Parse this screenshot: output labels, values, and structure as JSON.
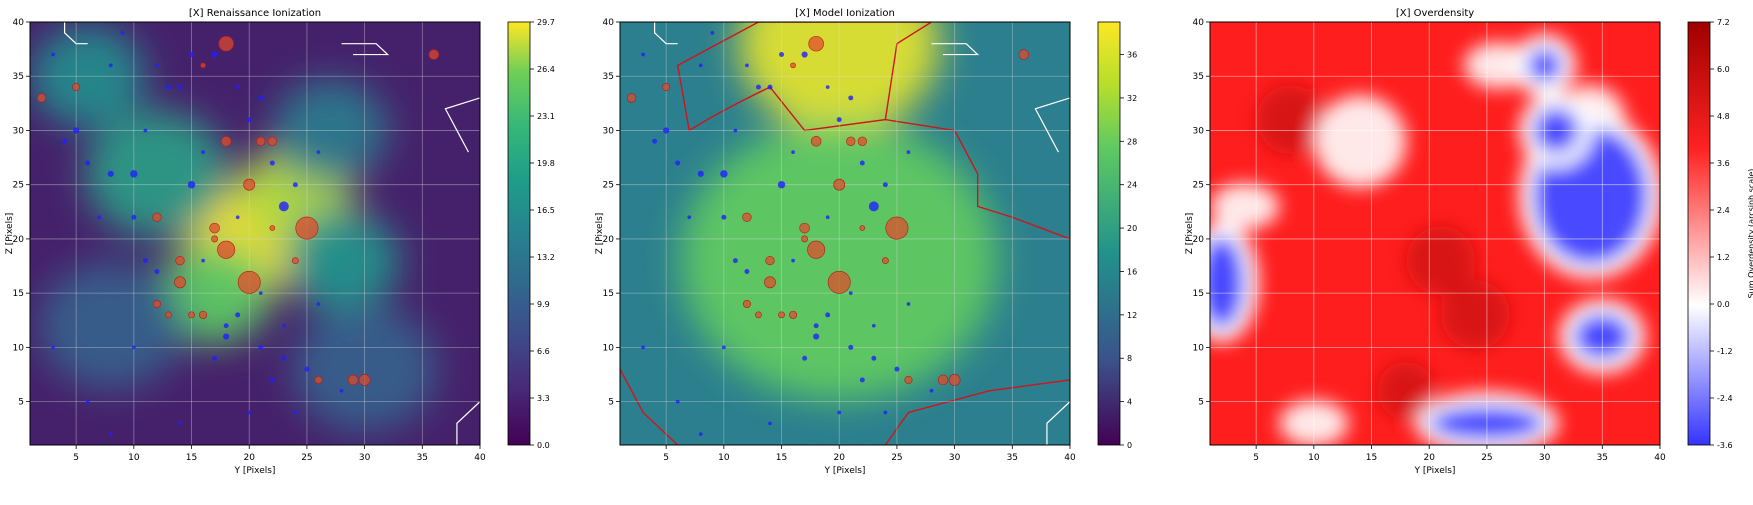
{
  "chart_data": [
    {
      "type": "heatmap",
      "title": "[X] Renaissance Ionization",
      "xlabel": "Y [Pixels]",
      "ylabel": "Z [Pixels]",
      "xlim": [
        1,
        40
      ],
      "ylim": [
        1,
        40
      ],
      "xticks": [
        "5",
        "10",
        "15",
        "20",
        "25",
        "30",
        "35",
        "40"
      ],
      "yticks": [
        "5",
        "10",
        "15",
        "20",
        "25",
        "30",
        "35",
        "40"
      ],
      "grid": true,
      "colormap": "viridis",
      "colorbar_range": [
        0,
        29.7
      ],
      "colorbar_ticks": [
        "0.0",
        "3.3",
        "6.6",
        "9.9",
        "13.2",
        "16.5",
        "19.8",
        "23.1",
        "26.4",
        "29.7"
      ],
      "hotspots": [
        {
          "x": 20,
          "y": 20,
          "value": 29.7,
          "spread": 4.5
        },
        {
          "x": 24,
          "y": 24,
          "value": 26,
          "spread": 4
        },
        {
          "x": 17,
          "y": 15,
          "value": 22,
          "spread": 4
        },
        {
          "x": 12,
          "y": 26,
          "value": 16,
          "spread": 5
        },
        {
          "x": 28,
          "y": 18,
          "value": 15,
          "spread": 4
        },
        {
          "x": 6,
          "y": 35,
          "value": 14,
          "spread": 4
        },
        {
          "x": 27,
          "y": 30,
          "value": 12,
          "spread": 4
        },
        {
          "x": 8,
          "y": 12,
          "value": 9,
          "spread": 5
        },
        {
          "x": 30,
          "y": 8,
          "value": 9,
          "spread": 5
        }
      ],
      "overlay": "points-and-outlines"
    },
    {
      "type": "heatmap",
      "title": "[X] Model Ionization",
      "xlabel": "Y [Pixels]",
      "ylabel": "Z [Pixels]",
      "xlim": [
        1,
        40
      ],
      "ylim": [
        1,
        40
      ],
      "xticks": [
        "5",
        "10",
        "15",
        "20",
        "25",
        "30",
        "35",
        "40"
      ],
      "yticks": [
        "5",
        "10",
        "15",
        "20",
        "25",
        "30",
        "35",
        "40"
      ],
      "grid": true,
      "colormap": "viridis",
      "colorbar_range": [
        0,
        39
      ],
      "colorbar_ticks": [
        "0",
        "4",
        "8",
        "12",
        "16",
        "20",
        "24",
        "28",
        "32",
        "36"
      ],
      "hotspots": [
        {
          "x": 20,
          "y": 38,
          "value": 38,
          "spread": 7
        },
        {
          "x": 20,
          "y": 18,
          "value": 30,
          "spread": 11
        }
      ],
      "contour_level_label": "",
      "overlay": "points-and-outlines"
    },
    {
      "type": "heatmap",
      "title": "[X] Overdensity",
      "xlabel": "Y [Pixels]",
      "ylabel": "Z [Pixels]",
      "colorbar_label": "Sum Overdensity (arcsinh scale)",
      "xlim": [
        1,
        40
      ],
      "ylim": [
        1,
        40
      ],
      "xticks": [
        "5",
        "10",
        "15",
        "20",
        "25",
        "30",
        "35",
        "40"
      ],
      "yticks": [
        "5",
        "10",
        "15",
        "20",
        "25",
        "30",
        "35",
        "40"
      ],
      "grid": true,
      "colormap": "bwr",
      "colorbar_range": [
        -3.6,
        7.2
      ],
      "colorbar_ticks": [
        "-3.6",
        "-2.4",
        "-1.2",
        "0.0",
        "1.2",
        "2.4",
        "3.6",
        "4.8",
        "6.0",
        "7.2"
      ],
      "blue_regions": [
        {
          "x": 34,
          "y": 24,
          "rx": 5,
          "ry": 6
        },
        {
          "x": 31,
          "y": 30,
          "rx": 2,
          "ry": 2
        },
        {
          "x": 2,
          "y": 16,
          "rx": 2,
          "ry": 4
        },
        {
          "x": 35,
          "y": 11,
          "rx": 2.5,
          "ry": 2
        },
        {
          "x": 30,
          "y": 36,
          "rx": 1.5,
          "ry": 1.5
        },
        {
          "x": 25,
          "y": 3,
          "rx": 5,
          "ry": 1.5
        }
      ],
      "white_regions": [
        {
          "x": 14,
          "y": 29,
          "rx": 4,
          "ry": 4
        },
        {
          "x": 4,
          "y": 23,
          "rx": 3,
          "ry": 2
        },
        {
          "x": 26,
          "y": 36,
          "rx": 3,
          "ry": 2
        },
        {
          "x": 34,
          "y": 31,
          "rx": 3,
          "ry": 3
        },
        {
          "x": 10,
          "y": 3,
          "rx": 3,
          "ry": 2
        }
      ]
    }
  ],
  "points": [
    {
      "x": 18,
      "y": 38,
      "s": 12,
      "c": "red"
    },
    {
      "x": 36,
      "y": 37,
      "s": 8,
      "c": "red"
    },
    {
      "x": 2,
      "y": 33,
      "s": 7,
      "c": "red"
    },
    {
      "x": 5,
      "y": 34,
      "s": 6,
      "c": "red"
    },
    {
      "x": 18,
      "y": 29,
      "s": 8,
      "c": "red"
    },
    {
      "x": 21,
      "y": 29,
      "s": 7,
      "c": "red"
    },
    {
      "x": 22,
      "y": 29,
      "s": 7,
      "c": "red"
    },
    {
      "x": 20,
      "y": 25,
      "s": 9,
      "c": "red"
    },
    {
      "x": 12,
      "y": 22,
      "s": 7,
      "c": "red"
    },
    {
      "x": 25,
      "y": 21,
      "s": 18,
      "c": "red"
    },
    {
      "x": 17,
      "y": 21,
      "s": 8,
      "c": "red"
    },
    {
      "x": 18,
      "y": 19,
      "s": 14,
      "c": "red"
    },
    {
      "x": 14,
      "y": 18,
      "s": 7,
      "c": "red"
    },
    {
      "x": 20,
      "y": 16,
      "s": 18,
      "c": "red"
    },
    {
      "x": 14,
      "y": 16,
      "s": 9,
      "c": "red"
    },
    {
      "x": 12,
      "y": 14,
      "s": 6,
      "c": "red"
    },
    {
      "x": 16,
      "y": 13,
      "s": 6,
      "c": "red"
    },
    {
      "x": 15,
      "y": 13,
      "s": 5,
      "c": "red"
    },
    {
      "x": 13,
      "y": 13,
      "s": 5,
      "c": "red"
    },
    {
      "x": 26,
      "y": 7,
      "s": 6,
      "c": "red"
    },
    {
      "x": 29,
      "y": 7,
      "s": 8,
      "c": "red"
    },
    {
      "x": 30,
      "y": 7,
      "s": 9,
      "c": "red"
    },
    {
      "x": 17,
      "y": 20,
      "s": 5,
      "c": "red"
    },
    {
      "x": 22,
      "y": 21,
      "s": 4,
      "c": "red"
    },
    {
      "x": 24,
      "y": 18,
      "s": 5,
      "c": "red"
    },
    {
      "x": 16,
      "y": 36,
      "s": 4,
      "c": "red"
    },
    {
      "x": 23,
      "y": 23,
      "s": 8,
      "c": "blue"
    },
    {
      "x": 15,
      "y": 25,
      "s": 6,
      "c": "blue"
    },
    {
      "x": 10,
      "y": 26,
      "s": 6,
      "c": "blue"
    },
    {
      "x": 18,
      "y": 11,
      "s": 5,
      "c": "blue"
    },
    {
      "x": 17,
      "y": 37,
      "s": 5,
      "c": "blue"
    },
    {
      "x": 5,
      "y": 30,
      "s": 5,
      "c": "blue"
    },
    {
      "x": 4,
      "y": 29,
      "s": 4,
      "c": "blue"
    },
    {
      "x": 6,
      "y": 27,
      "s": 4,
      "c": "blue"
    },
    {
      "x": 8,
      "y": 26,
      "s": 5,
      "c": "blue"
    },
    {
      "x": 10,
      "y": 22,
      "s": 4,
      "c": "blue"
    },
    {
      "x": 13,
      "y": 34,
      "s": 4,
      "c": "blue"
    },
    {
      "x": 14,
      "y": 34,
      "s": 4,
      "c": "blue"
    },
    {
      "x": 15,
      "y": 37,
      "s": 4,
      "c": "blue"
    },
    {
      "x": 21,
      "y": 33,
      "s": 4,
      "c": "blue"
    },
    {
      "x": 20,
      "y": 31,
      "s": 4,
      "c": "blue"
    },
    {
      "x": 16,
      "y": 28,
      "s": 3,
      "c": "blue"
    },
    {
      "x": 22,
      "y": 27,
      "s": 4,
      "c": "blue"
    },
    {
      "x": 24,
      "y": 25,
      "s": 4,
      "c": "blue"
    },
    {
      "x": 26,
      "y": 28,
      "s": 3,
      "c": "blue"
    },
    {
      "x": 11,
      "y": 18,
      "s": 4,
      "c": "blue"
    },
    {
      "x": 12,
      "y": 17,
      "s": 4,
      "c": "blue"
    },
    {
      "x": 16,
      "y": 18,
      "s": 3,
      "c": "blue"
    },
    {
      "x": 19,
      "y": 13,
      "s": 4,
      "c": "blue"
    },
    {
      "x": 18,
      "y": 12,
      "s": 4,
      "c": "blue"
    },
    {
      "x": 17,
      "y": 9,
      "s": 4,
      "c": "blue"
    },
    {
      "x": 21,
      "y": 10,
      "s": 4,
      "c": "blue"
    },
    {
      "x": 23,
      "y": 9,
      "s": 4,
      "c": "blue"
    },
    {
      "x": 22,
      "y": 7,
      "s": 4,
      "c": "blue"
    },
    {
      "x": 25,
      "y": 8,
      "s": 4,
      "c": "blue"
    },
    {
      "x": 28,
      "y": 6,
      "s": 3,
      "c": "blue"
    },
    {
      "x": 20,
      "y": 4,
      "s": 3,
      "c": "blue"
    },
    {
      "x": 10,
      "y": 10,
      "s": 3,
      "c": "blue"
    },
    {
      "x": 8,
      "y": 2,
      "s": 3,
      "c": "blue"
    },
    {
      "x": 14,
      "y": 3,
      "s": 3,
      "c": "blue"
    },
    {
      "x": 23,
      "y": 12,
      "s": 3,
      "c": "blue"
    },
    {
      "x": 21,
      "y": 15,
      "s": 3,
      "c": "blue"
    },
    {
      "x": 3,
      "y": 37,
      "s": 3,
      "c": "blue"
    },
    {
      "x": 8,
      "y": 36,
      "s": 3,
      "c": "blue"
    },
    {
      "x": 9,
      "y": 39,
      "s": 3,
      "c": "blue"
    },
    {
      "x": 11,
      "y": 30,
      "s": 3,
      "c": "blue"
    },
    {
      "x": 7,
      "y": 22,
      "s": 3,
      "c": "blue"
    },
    {
      "x": 19,
      "y": 22,
      "s": 3,
      "c": "blue"
    },
    {
      "x": 26,
      "y": 14,
      "s": 3,
      "c": "blue"
    },
    {
      "x": 24,
      "y": 4,
      "s": 3,
      "c": "blue"
    },
    {
      "x": 12,
      "y": 36,
      "s": 3,
      "c": "blue"
    },
    {
      "x": 19,
      "y": 34,
      "s": 3,
      "c": "blue"
    },
    {
      "x": 3,
      "y": 10,
      "s": 3,
      "c": "blue"
    },
    {
      "x": 6,
      "y": 5,
      "s": 3,
      "c": "blue"
    }
  ]
}
